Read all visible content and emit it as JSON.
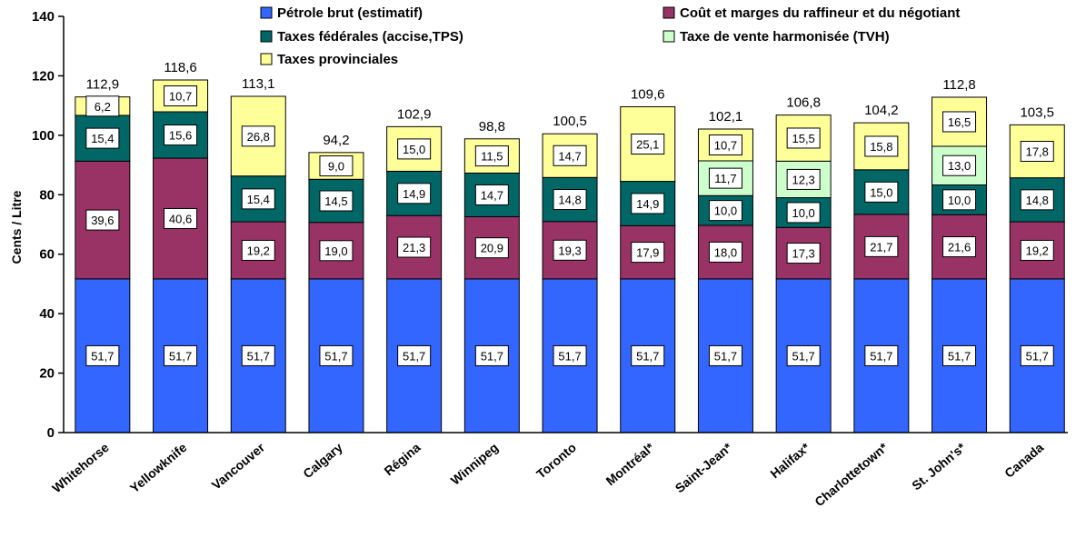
{
  "chart_data": {
    "type": "bar",
    "stacked": true,
    "ylabel": "Cents / Litre",
    "ylim": [
      0,
      140
    ],
    "yticks": [
      0,
      20,
      40,
      60,
      80,
      100,
      120,
      140
    ],
    "legend_position": "top",
    "categories": [
      "Whitehorse",
      "Yellowknife",
      "Vancouver",
      "Calgary",
      "Régina",
      "Winnipeg",
      "Toronto",
      "Montréal*",
      "Saint-Jean*",
      "Halifax*",
      "Charlottetown*",
      "St. John's*",
      "Canada"
    ],
    "totals": [
      "112,9",
      "118,6",
      "113,1",
      "94,2",
      "102,9",
      "98,8",
      "100,5",
      "109,6",
      "102,1",
      "106,8",
      "104,2",
      "112,8",
      "103,5"
    ],
    "series": [
      {
        "name": "Pétrole brut (estimatif)",
        "color": "#3366FF",
        "values": [
          51.7,
          51.7,
          51.7,
          51.7,
          51.7,
          51.7,
          51.7,
          51.7,
          51.7,
          51.7,
          51.7,
          51.7,
          51.7
        ]
      },
      {
        "name": "Coût et marges du raffineur et du négotiant",
        "color": "#993366",
        "values": [
          39.6,
          40.6,
          19.2,
          19.0,
          21.3,
          20.9,
          19.3,
          17.9,
          18.0,
          17.3,
          21.7,
          21.6,
          19.2
        ]
      },
      {
        "name": "Taxes fédérales (accise,TPS)",
        "color": "#006666",
        "values": [
          15.4,
          15.6,
          15.4,
          14.5,
          14.9,
          14.7,
          14.8,
          14.9,
          10.0,
          10.0,
          15.0,
          10.0,
          14.8
        ]
      },
      {
        "name": "Taxe de vente harmonisée (TVH)",
        "color": "#CCFFCC",
        "values": [
          null,
          null,
          null,
          null,
          null,
          null,
          null,
          null,
          11.7,
          12.3,
          null,
          13.0,
          null
        ]
      },
      {
        "name": "Taxes provinciales",
        "color": "#FFFF99",
        "values": [
          6.2,
          10.7,
          26.8,
          9.0,
          15.0,
          11.5,
          14.7,
          25.1,
          10.7,
          15.5,
          15.8,
          16.5,
          17.8
        ]
      }
    ]
  }
}
